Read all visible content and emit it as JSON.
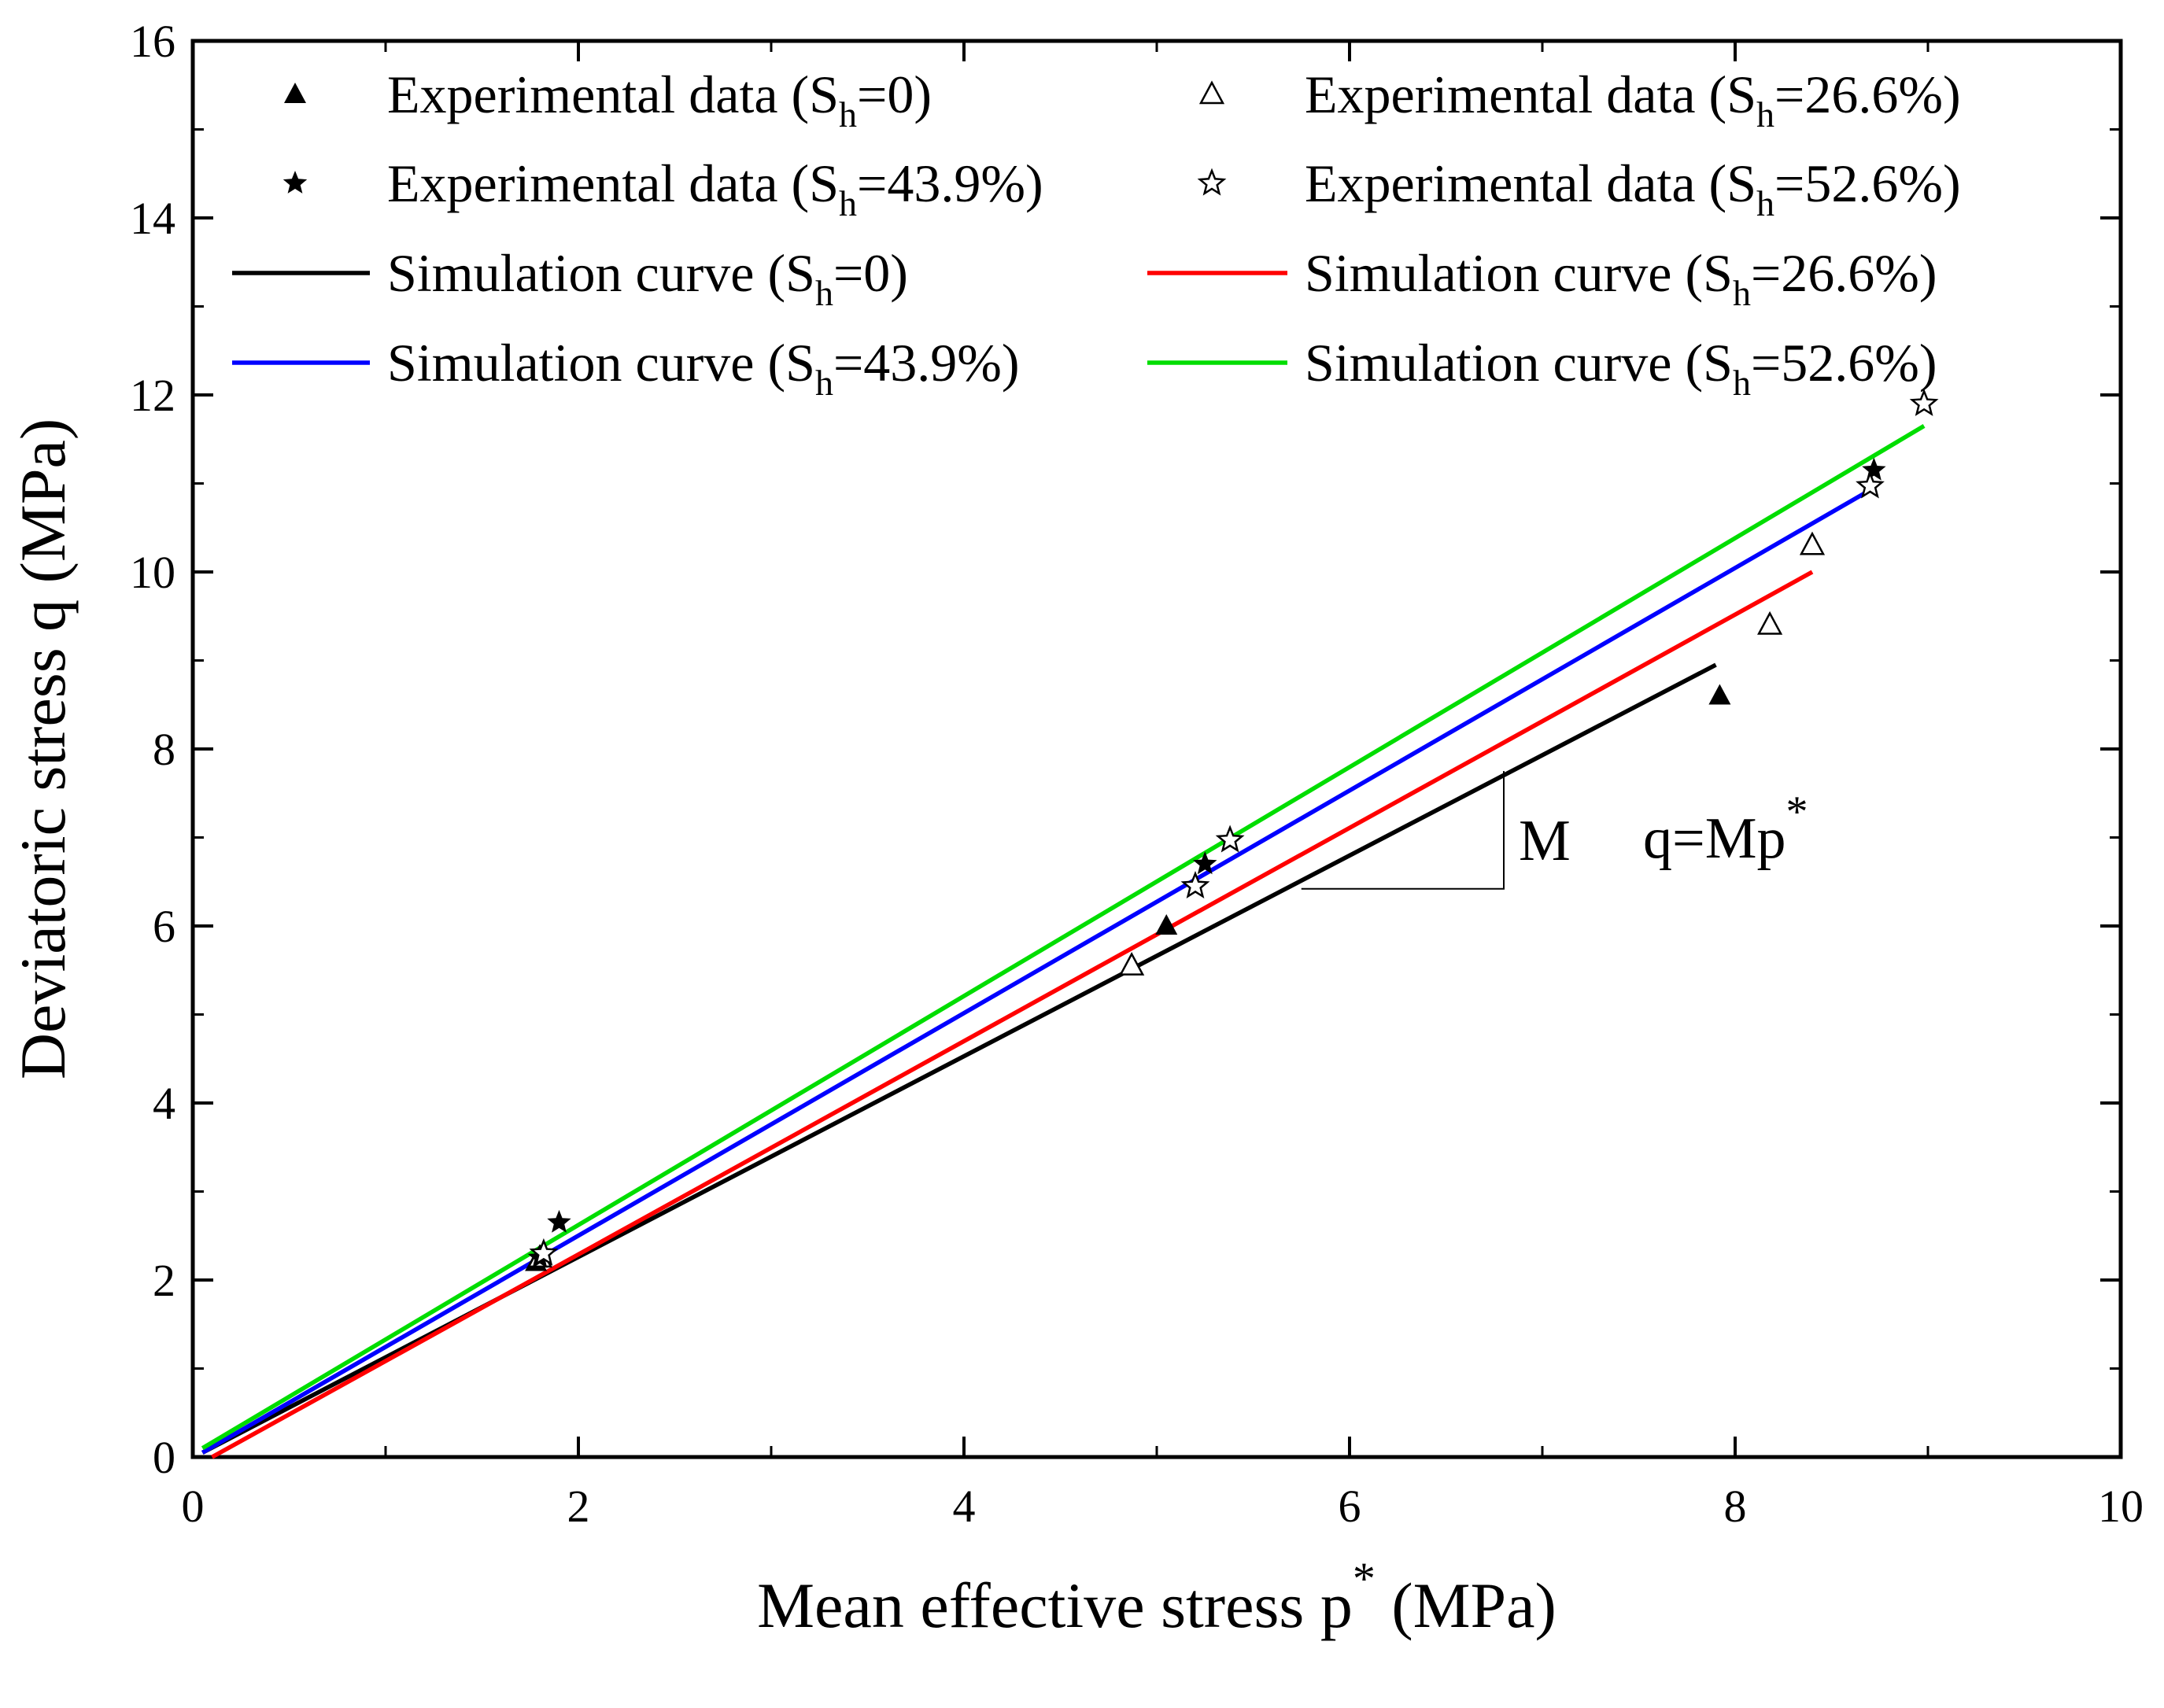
{
  "chart_data": {
    "type": "scatter",
    "title": "",
    "xlabel": "Mean effective stress p",
    "xlabel_sup": "*",
    "xlabel_unit": "(MPa)",
    "ylabel": "Deviatoric stress q (MPa)",
    "xlim": [
      0,
      10
    ],
    "ylim": [
      0,
      16
    ],
    "xticks": [
      "0",
      "2",
      "4",
      "6",
      "8",
      "10"
    ],
    "yticks": [
      "0",
      "2",
      "4",
      "6",
      "8",
      "10",
      "12",
      "14",
      "16"
    ],
    "legend_position": "top",
    "annotations": {
      "slope_label": "M",
      "equation": "q=Mp",
      "equation_sup": "*"
    },
    "series": [
      {
        "name": "Experimental data (Sh=0)",
        "label_pre": "Experimental data (S",
        "label_sub": "h",
        "label_post": "=0)",
        "kind": "marker",
        "marker": "triangle-filled",
        "points": [
          [
            1.78,
            2.2
          ],
          [
            5.05,
            6.0
          ],
          [
            7.92,
            8.6
          ]
        ]
      },
      {
        "name": "Experimental data (Sh=26.6%)",
        "label_pre": "Experimental data (S",
        "label_sub": "h",
        "label_post": "=26.6%)",
        "kind": "marker",
        "marker": "triangle-open",
        "points": [
          [
            1.8,
            2.25
          ],
          [
            4.87,
            5.55
          ],
          [
            8.18,
            9.4
          ],
          [
            8.4,
            10.3
          ]
        ]
      },
      {
        "name": "Experimental data (Sh=43.9%)",
        "label_pre": "Experimental data (S",
        "label_sub": "h",
        "label_post": "=43.9%)",
        "kind": "marker",
        "marker": "star-filled",
        "points": [
          [
            1.8,
            2.25
          ],
          [
            1.9,
            2.65
          ],
          [
            5.25,
            6.7
          ],
          [
            8.72,
            11.15
          ]
        ]
      },
      {
        "name": "Experimental data (Sh=52.6%)",
        "label_pre": "Experimental data (S",
        "label_sub": "h",
        "label_post": "=52.6%)",
        "kind": "marker",
        "marker": "star-open",
        "points": [
          [
            1.82,
            2.3
          ],
          [
            5.2,
            6.45
          ],
          [
            5.38,
            6.97
          ],
          [
            8.7,
            10.97
          ],
          [
            8.98,
            11.9
          ]
        ]
      },
      {
        "name": "Simulation curve (Sh=0)",
        "label_pre": "Simulation curve (S",
        "label_sub": "h",
        "label_post": "=0)",
        "kind": "line",
        "color": "#000000",
        "x": [
          0.05,
          7.9
        ],
        "y": [
          0.05,
          8.95
        ]
      },
      {
        "name": "Simulation curve (Sh=26.6%)",
        "label_pre": "Simulation curve (S",
        "label_sub": "h",
        "label_post": "=26.6%)",
        "kind": "line",
        "color": "#ff0000",
        "x": [
          0.1,
          8.4
        ],
        "y": [
          0.0,
          10.0
        ]
      },
      {
        "name": "Simulation curve (Sh=43.9%)",
        "label_pre": "Simulation curve (S",
        "label_sub": "h",
        "label_post": "=43.9%)",
        "kind": "line",
        "color": "#0000ff",
        "x": [
          0.05,
          8.72
        ],
        "y": [
          0.05,
          10.95
        ]
      },
      {
        "name": "Simulation curve (Sh=52.6%)",
        "label_pre": "Simulation curve (S",
        "label_sub": "h",
        "label_post": "=52.6%)",
        "kind": "line",
        "color": "#00dd00",
        "x": [
          0.05,
          8.98
        ],
        "y": [
          0.1,
          11.65
        ]
      }
    ]
  }
}
